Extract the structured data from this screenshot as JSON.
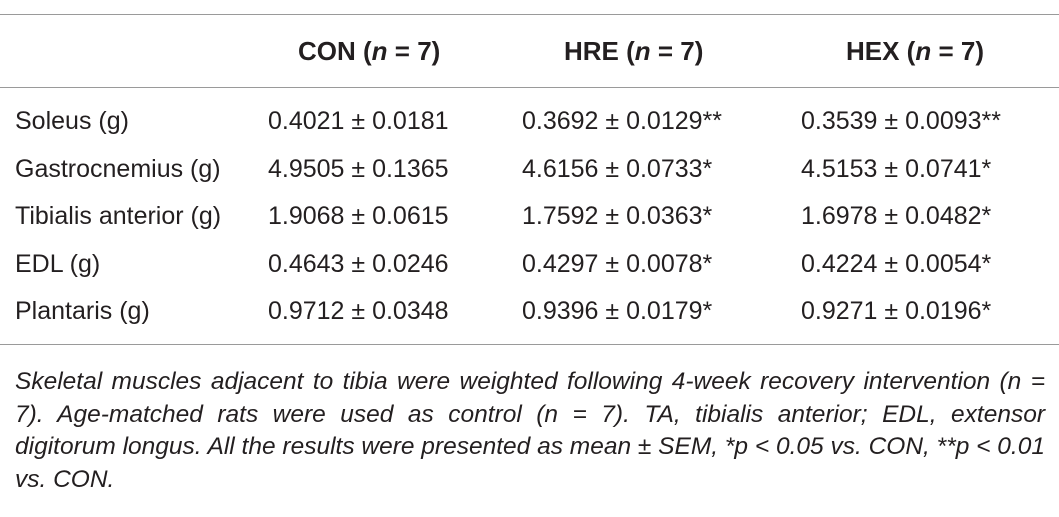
{
  "table": {
    "headers": [
      {
        "prefix": "CON (",
        "n": "n",
        "suffix": " = 7)"
      },
      {
        "prefix": "HRE (",
        "n": "n",
        "suffix": " = 7)"
      },
      {
        "prefix": "HEX (",
        "n": "n",
        "suffix": " = 7)"
      }
    ],
    "rows": [
      {
        "label": "Soleus (g)",
        "con": "0.4021 ± 0.0181",
        "hre": "0.3692 ± 0.0129**",
        "hex": "0.3539 ± 0.0093**"
      },
      {
        "label": "Gastrocnemius (g)",
        "con": "4.9505 ± 0.1365",
        "hre": "4.6156 ± 0.0733*",
        "hex": "4.5153 ± 0.0741*"
      },
      {
        "label": "Tibialis anterior (g)",
        "con": "1.9068 ± 0.0615",
        "hre": "1.7592 ± 0.0363*",
        "hex": "1.6978 ± 0.0482*"
      },
      {
        "label": "EDL (g)",
        "con": "0.4643 ± 0.0246",
        "hre": "0.4297 ± 0.0078*",
        "hex": "0.4224 ± 0.0054*"
      },
      {
        "label": "Plantaris (g)",
        "con": "0.9712 ± 0.0348",
        "hre": "0.9396 ± 0.0179*",
        "hex": "0.9271 ± 0.0196*"
      }
    ]
  },
  "caption": "Skeletal muscles adjacent to tibia were weighted following 4-week recovery intervention (n = 7). Age-matched rats were used as control (n = 7). TA, tibialis anterior; EDL, extensor digitorum longus. All the results were presented as mean ± SEM, *p < 0.05 vs. CON, **p < 0.01 vs. CON."
}
